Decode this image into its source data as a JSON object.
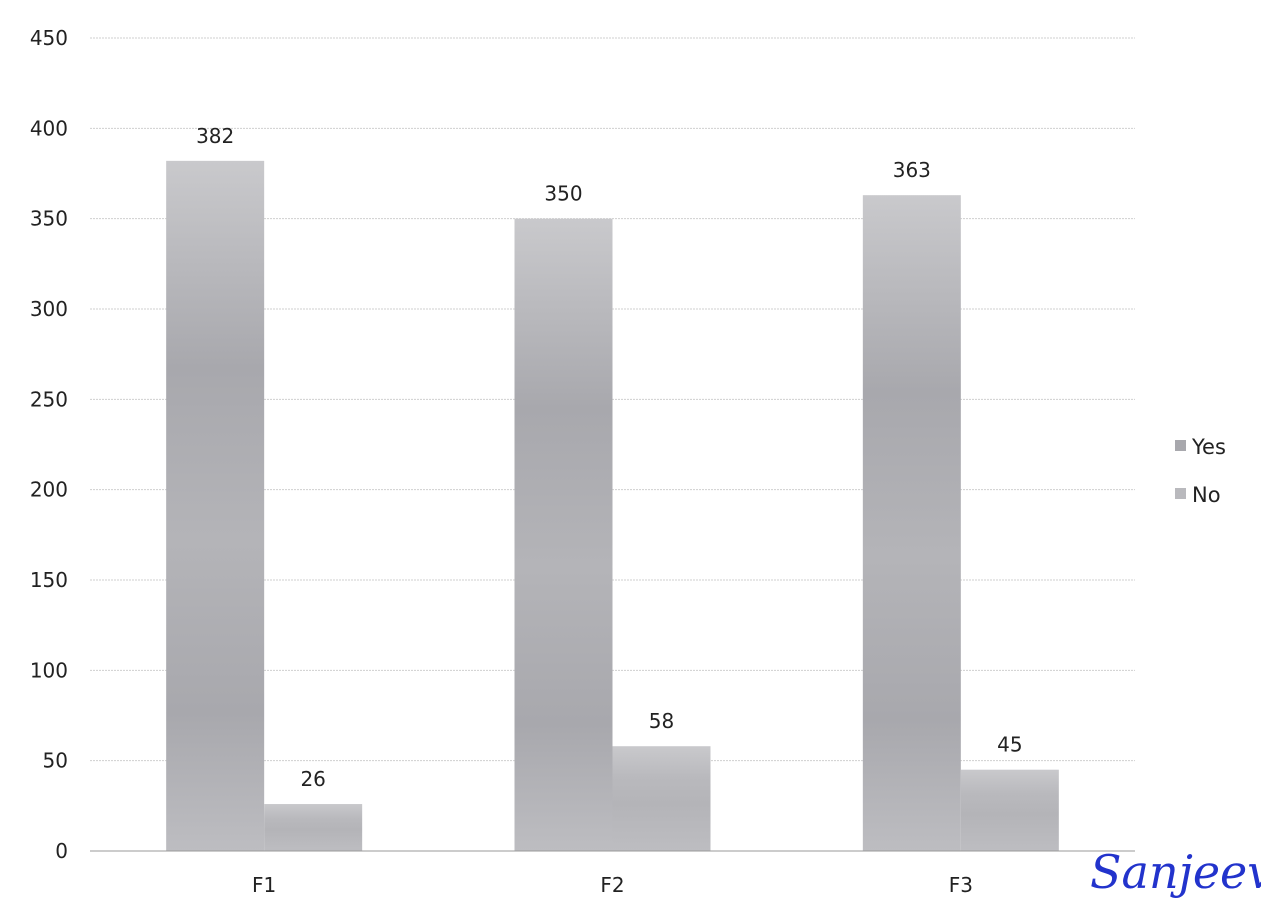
{
  "chart_data": {
    "type": "bar",
    "categories": [
      "F1",
      "F2",
      "F3"
    ],
    "series": [
      {
        "name": "Yes",
        "values": [
          382,
          350,
          363
        ],
        "color": "#a8a8ad"
      },
      {
        "name": "No",
        "values": [
          26,
          58,
          45
        ],
        "color": "#b9b9bd"
      }
    ],
    "data_labels": [
      [
        "382",
        "26"
      ],
      [
        "350",
        "58"
      ],
      [
        "363",
        "45"
      ]
    ],
    "ylim": [
      0,
      450
    ],
    "yticks": [
      0,
      50,
      100,
      150,
      200,
      250,
      300,
      350,
      400,
      450
    ],
    "ytick_labels": [
      "0",
      "50",
      "100",
      "150",
      "200",
      "250",
      "300",
      "350",
      "400",
      "450"
    ],
    "grid": true,
    "legend_position": "right",
    "title": "",
    "xlabel": "",
    "ylabel": ""
  },
  "signature": {
    "text": "Sanjeev"
  }
}
